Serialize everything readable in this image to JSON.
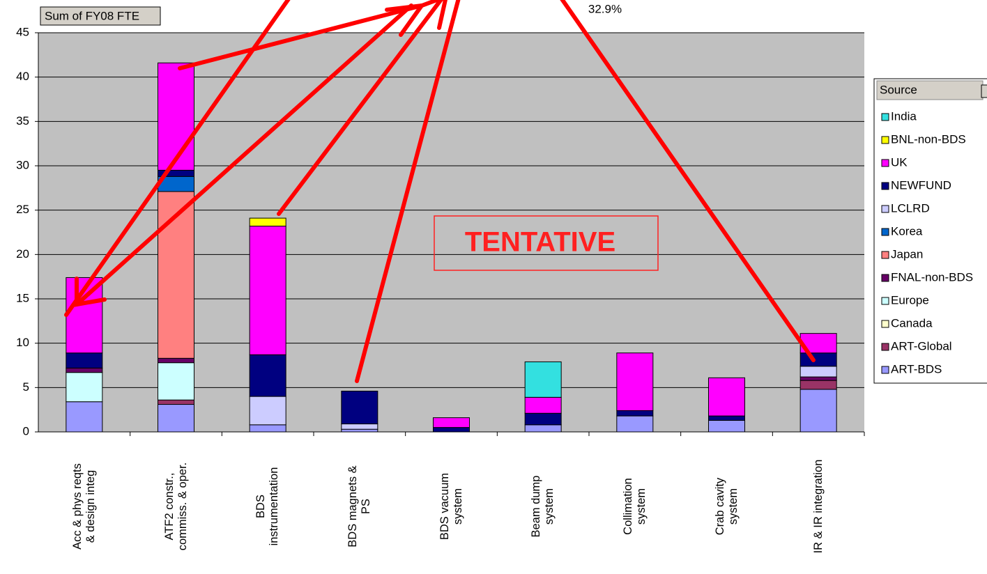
{
  "chart_data": {
    "type": "stacked_bar",
    "title": "32.9%",
    "field_button": "Sum of FY08 FTE",
    "annotation": "TENTATIVE",
    "legend_title": "Source",
    "legend_position": "right",
    "grid": true,
    "categories": [
      "Acc & phys reqts\n& design integ",
      "ATF2 constr.,\ncommiss. & oper.",
      "BDS\ninstrumentation",
      "BDS magnets &\nPS",
      "BDS vacuum\nsystem",
      "Beam dump\nsystem",
      "Collimation\nsystem",
      "Crab cavity\nsystem",
      "IR & IR integration"
    ],
    "ylim": [
      0,
      45
    ],
    "yticks": [
      0,
      5,
      10,
      15,
      20,
      25,
      30,
      35,
      40,
      45
    ],
    "series": [
      {
        "name": "ART-BDS",
        "color": "#9999ff",
        "values": [
          3.4,
          3.1,
          0.8,
          0.3,
          null,
          0.8,
          1.8,
          1.3,
          4.8
        ]
      },
      {
        "name": "ART-Global",
        "color": "#993366",
        "values": [
          null,
          0.5,
          null,
          null,
          null,
          null,
          null,
          null,
          1.0
        ]
      },
      {
        "name": "Canada",
        "color": "#ffffcc",
        "values": [
          null,
          null,
          null,
          null,
          null,
          null,
          null,
          null,
          null
        ]
      },
      {
        "name": "Europe",
        "color": "#ccffff",
        "values": [
          3.3,
          4.2,
          null,
          null,
          null,
          null,
          null,
          null,
          null
        ]
      },
      {
        "name": "FNAL-non-BDS",
        "color": "#660066",
        "values": [
          0.5,
          0.5,
          null,
          null,
          null,
          null,
          null,
          null,
          0.4
        ]
      },
      {
        "name": "Japan",
        "color": "#ff8080",
        "values": [
          null,
          18.8,
          null,
          null,
          null,
          null,
          null,
          null,
          null
        ]
      },
      {
        "name": "Korea",
        "color": "#0066cc",
        "values": [
          null,
          1.7,
          null,
          null,
          null,
          null,
          null,
          null,
          null
        ]
      },
      {
        "name": "LCLRD",
        "color": "#ccccff",
        "values": [
          null,
          null,
          3.2,
          0.6,
          null,
          null,
          null,
          null,
          1.2
        ]
      },
      {
        "name": "NEWFUND",
        "color": "#000080",
        "values": [
          1.7,
          0.7,
          4.7,
          3.7,
          0.5,
          1.3,
          0.6,
          0.5,
          1.5
        ]
      },
      {
        "name": "UK",
        "color": "#ff00ff",
        "values": [
          8.5,
          12.1,
          14.5,
          null,
          1.1,
          1.8,
          6.5,
          4.3,
          2.2
        ]
      },
      {
        "name": "BNL-non-BDS",
        "color": "#ffff00",
        "values": [
          null,
          null,
          0.9,
          null,
          null,
          null,
          null,
          null,
          null
        ]
      },
      {
        "name": "India",
        "color": "#33e0e0",
        "values": [
          null,
          null,
          null,
          null,
          null,
          4.0,
          null,
          null,
          null
        ]
      }
    ]
  }
}
